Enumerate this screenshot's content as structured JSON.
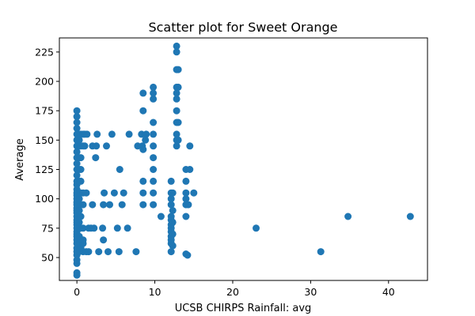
{
  "chart_data": {
    "type": "scatter",
    "title": "Scatter plot for Sweet Orange",
    "xlabel": "UCSB CHIRPS Rainfall: avg",
    "ylabel": "Average",
    "xlim": [
      -2.25,
      45
    ],
    "ylim": [
      30.5,
      237
    ],
    "xticks": [
      0,
      10,
      20,
      30,
      40
    ],
    "yticks": [
      50,
      75,
      100,
      125,
      150,
      175,
      200,
      225
    ],
    "grid": false,
    "marker_color": "#1f77b4",
    "points": [
      [
        0,
        35
      ],
      [
        0,
        37
      ],
      [
        0,
        45
      ],
      [
        0,
        48
      ],
      [
        0,
        52
      ],
      [
        0,
        55
      ],
      [
        0,
        58
      ],
      [
        0,
        62
      ],
      [
        0,
        65
      ],
      [
        0,
        68
      ],
      [
        0,
        70
      ],
      [
        0,
        72
      ],
      [
        0,
        75
      ],
      [
        0,
        78
      ],
      [
        0,
        80
      ],
      [
        0,
        82
      ],
      [
        0,
        85
      ],
      [
        0,
        88
      ],
      [
        0,
        90
      ],
      [
        0,
        92
      ],
      [
        0,
        95
      ],
      [
        0,
        97
      ],
      [
        0,
        100
      ],
      [
        0,
        103
      ],
      [
        0,
        105
      ],
      [
        0,
        108
      ],
      [
        0,
        112
      ],
      [
        0,
        115
      ],
      [
        0,
        120
      ],
      [
        0,
        125
      ],
      [
        0,
        130
      ],
      [
        0,
        135
      ],
      [
        0,
        140
      ],
      [
        0,
        145
      ],
      [
        0,
        150
      ],
      [
        0,
        155
      ],
      [
        0,
        160
      ],
      [
        0,
        165
      ],
      [
        0,
        170
      ],
      [
        0,
        175
      ],
      [
        0.3,
        55
      ],
      [
        0.3,
        62
      ],
      [
        0.3,
        68
      ],
      [
        0.3,
        75
      ],
      [
        0.3,
        80
      ],
      [
        0.3,
        85
      ],
      [
        0.3,
        90
      ],
      [
        0.3,
        95
      ],
      [
        0.3,
        100
      ],
      [
        0.3,
        105
      ],
      [
        0.3,
        115
      ],
      [
        0.3,
        125
      ],
      [
        0.3,
        135
      ],
      [
        0.3,
        145
      ],
      [
        0.3,
        150
      ],
      [
        0.3,
        155
      ],
      [
        0.5,
        58
      ],
      [
        0.5,
        65
      ],
      [
        0.5,
        75
      ],
      [
        0.5,
        85
      ],
      [
        0.5,
        95
      ],
      [
        0.5,
        105
      ],
      [
        0.5,
        115
      ],
      [
        0.5,
        125
      ],
      [
        0.5,
        135
      ],
      [
        0.5,
        145
      ],
      [
        0.5,
        155
      ],
      [
        0.8,
        55
      ],
      [
        0.8,
        62
      ],
      [
        0.8,
        65
      ],
      [
        0.8,
        75
      ],
      [
        0.8,
        95
      ],
      [
        0.8,
        105
      ],
      [
        0.8,
        145
      ],
      [
        0.8,
        155
      ],
      [
        1,
        145
      ],
      [
        1,
        155
      ],
      [
        1.2,
        55
      ],
      [
        1.2,
        105
      ],
      [
        1.3,
        155
      ],
      [
        1.5,
        75
      ],
      [
        1.5,
        55
      ],
      [
        1.8,
        75
      ],
      [
        2,
        95
      ],
      [
        2,
        145
      ],
      [
        2.2,
        75
      ],
      [
        2.4,
        135
      ],
      [
        2.5,
        145
      ],
      [
        2.6,
        155
      ],
      [
        2.8,
        55
      ],
      [
        3.3,
        75
      ],
      [
        3.4,
        65
      ],
      [
        3.4,
        95
      ],
      [
        3.5,
        105
      ],
      [
        3.8,
        145
      ],
      [
        4,
        55
      ],
      [
        4.2,
        95
      ],
      [
        4.5,
        155
      ],
      [
        4.8,
        105
      ],
      [
        5.2,
        75
      ],
      [
        5.4,
        55
      ],
      [
        5.5,
        125
      ],
      [
        5.8,
        95
      ],
      [
        6,
        105
      ],
      [
        6.5,
        75
      ],
      [
        6.7,
        155
      ],
      [
        7.6,
        55
      ],
      [
        7.8,
        145
      ],
      [
        8.4,
        145
      ],
      [
        8.3,
        155
      ],
      [
        8.5,
        95
      ],
      [
        8.5,
        105
      ],
      [
        8.5,
        115
      ],
      [
        8.5,
        142
      ],
      [
        8.5,
        175
      ],
      [
        8.5,
        190
      ],
      [
        8.8,
        150
      ],
      [
        8.9,
        155
      ],
      [
        9.8,
        95
      ],
      [
        9.8,
        105
      ],
      [
        9.8,
        115
      ],
      [
        9.8,
        125
      ],
      [
        9.8,
        135
      ],
      [
        9.8,
        145
      ],
      [
        9.8,
        155
      ],
      [
        9.8,
        165
      ],
      [
        9.8,
        185
      ],
      [
        9.8,
        190
      ],
      [
        9.8,
        195
      ],
      [
        10.8,
        85
      ],
      [
        12.1,
        55
      ],
      [
        12.1,
        62
      ],
      [
        12.1,
        65
      ],
      [
        12.1,
        68
      ],
      [
        12.1,
        72
      ],
      [
        12.1,
        75
      ],
      [
        12.1,
        78
      ],
      [
        12.1,
        82
      ],
      [
        12.1,
        85
      ],
      [
        12.1,
        95
      ],
      [
        12.1,
        100
      ],
      [
        12.1,
        105
      ],
      [
        12.1,
        115
      ],
      [
        12.3,
        60
      ],
      [
        12.3,
        70
      ],
      [
        12.3,
        80
      ],
      [
        12.3,
        90
      ],
      [
        12.3,
        105
      ],
      [
        12.8,
        145
      ],
      [
        12.8,
        150
      ],
      [
        12.8,
        155
      ],
      [
        12.8,
        165
      ],
      [
        12.8,
        175
      ],
      [
        12.8,
        185
      ],
      [
        12.8,
        190
      ],
      [
        12.8,
        195
      ],
      [
        12.8,
        210
      ],
      [
        12.8,
        225
      ],
      [
        12.8,
        230
      ],
      [
        13,
        150
      ],
      [
        13,
        165
      ],
      [
        13,
        195
      ],
      [
        13,
        210
      ],
      [
        14,
        53
      ],
      [
        14,
        85
      ],
      [
        14,
        95
      ],
      [
        14,
        100
      ],
      [
        14,
        105
      ],
      [
        14,
        115
      ],
      [
        14,
        125
      ],
      [
        14.2,
        52
      ],
      [
        14.3,
        95
      ],
      [
        14.5,
        145
      ],
      [
        14.5,
        125
      ],
      [
        15,
        105
      ],
      [
        23,
        75
      ],
      [
        31.3,
        55
      ],
      [
        34.8,
        85
      ],
      [
        42.8,
        85
      ]
    ]
  }
}
